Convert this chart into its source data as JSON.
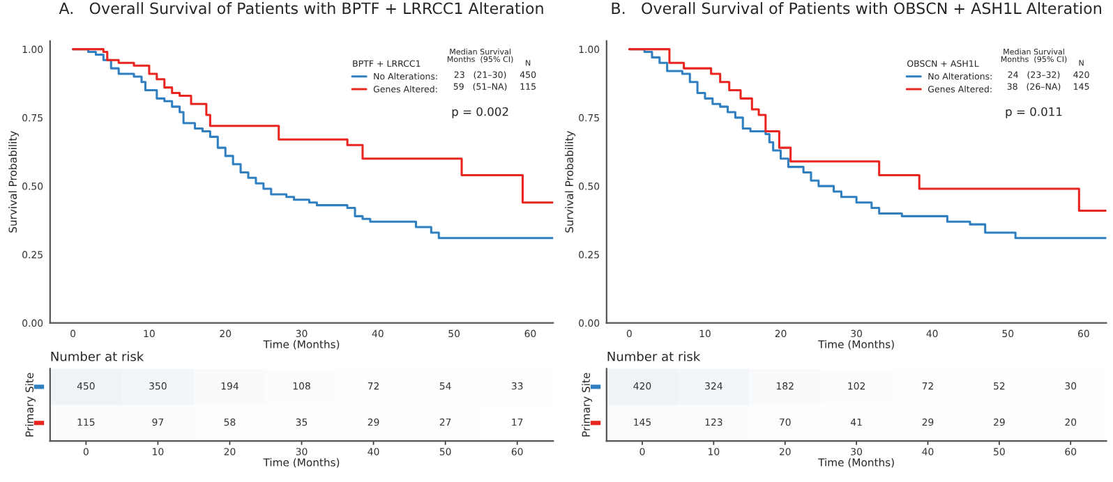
{
  "chart_data": [
    {
      "type": "step",
      "title": "A.   Overall Survival of Patients with BPTF + LRRCC1 Alteration",
      "xlabel": "Time (Months)",
      "ylabel": "Survival Probability",
      "legend_title": "BPTF + LRRCC1",
      "legend": "top right",
      "xlim": [
        -3,
        63
      ],
      "xticks": [
        0,
        10,
        20,
        30,
        40,
        50,
        60
      ],
      "ylim": [
        0,
        1.03
      ],
      "yticks": [
        {
          "value": 0,
          "label": "0.00"
        },
        {
          "value": 0.25,
          "label": "0.25"
        },
        {
          "value": 0.5,
          "label": "0.50"
        },
        {
          "value": 0.75,
          "label": "0.75"
        },
        {
          "value": 1,
          "label": "1.00"
        }
      ],
      "annotations": [
        "Median Survival\nMonths  (95% CI)",
        "N",
        "23   (21–30)",
        "450",
        "59   (51–NA)",
        "115",
        "p = 0.002"
      ],
      "series": [
        {
          "name": "No Alterations:",
          "color": "#2f7fc1",
          "x": [
            0,
            2,
            3,
            4,
            5,
            6,
            8,
            9,
            9.5,
            11,
            12,
            13,
            14,
            14.5,
            16,
            17,
            18,
            19,
            20,
            21,
            22,
            23,
            24,
            25,
            26,
            28,
            29,
            31,
            32,
            36,
            37,
            38,
            39,
            45,
            47,
            48,
            63
          ],
          "values": [
            1.0,
            0.99,
            0.98,
            0.96,
            0.93,
            0.91,
            0.9,
            0.88,
            0.85,
            0.82,
            0.81,
            0.79,
            0.77,
            0.73,
            0.71,
            0.7,
            0.68,
            0.64,
            0.61,
            0.58,
            0.55,
            0.53,
            0.51,
            0.49,
            0.47,
            0.46,
            0.45,
            0.44,
            0.43,
            0.42,
            0.39,
            0.38,
            0.37,
            0.35,
            0.33,
            0.31,
            0.31
          ]
        },
        {
          "name": "Genes Altered:",
          "color": "#e8251f",
          "x": [
            0,
            4,
            4.5,
            6,
            8,
            10,
            11,
            12,
            13,
            14,
            15.5,
            17.5,
            18,
            27,
            36,
            38,
            51,
            59,
            63
          ],
          "values": [
            1.0,
            0.99,
            0.96,
            0.95,
            0.94,
            0.91,
            0.89,
            0.86,
            0.84,
            0.83,
            0.8,
            0.76,
            0.72,
            0.67,
            0.65,
            0.6,
            0.54,
            0.44,
            0.44
          ]
        }
      ]
    },
    {
      "type": "heatmap",
      "title": "Number at risk",
      "xlabel": "Time (Months)",
      "ylabel": "Primary Site",
      "categories": [
        "0",
        "10",
        "20",
        "30",
        "40",
        "50",
        "60"
      ],
      "y_categories": [
        null,
        null
      ],
      "colors": [
        "#2f7fc1",
        "#e8251f"
      ],
      "cells": [
        [
          450,
          350,
          194,
          108,
          72,
          54,
          33
        ],
        [
          115,
          97,
          58,
          35,
          29,
          27,
          17
        ]
      ],
      "cell_labels": [
        [
          "450",
          "350",
          "194",
          "108",
          "72",
          "54",
          "33"
        ],
        [
          "115",
          "97",
          "58",
          "35",
          "29",
          "27",
          "17"
        ]
      ]
    },
    {
      "type": "step",
      "title": "B.   Overall Survival of Patients with OBSCN + ASH1L Alteration",
      "xlabel": "Time (Months)",
      "ylabel": "Survival Probability",
      "legend_title": "OBSCN + ASH1L",
      "legend": "top right",
      "xlim": [
        -3,
        63
      ],
      "xticks": [
        0,
        10,
        20,
        30,
        40,
        50,
        60
      ],
      "ylim": [
        0,
        1.03
      ],
      "yticks": [
        {
          "value": 0,
          "label": "0.00"
        },
        {
          "value": 0.25,
          "label": "0.25"
        },
        {
          "value": 0.5,
          "label": "0.50"
        },
        {
          "value": 0.75,
          "label": "0.75"
        },
        {
          "value": 1,
          "label": "1.00"
        }
      ],
      "annotations": [
        "Median Survival\nMonths  (95% CI)",
        "N",
        "24   (23–32)",
        "420",
        "38   (26–NA)",
        "145",
        "p = 0.011"
      ],
      "series": [
        {
          "name": "No Alterations:",
          "color": "#2f7fc1",
          "x": [
            0,
            2,
            3,
            4,
            5,
            7,
            8,
            9,
            10,
            11,
            12,
            13,
            14,
            15,
            16,
            18,
            18.5,
            19,
            20,
            21,
            23,
            24,
            25,
            27,
            28,
            30,
            32,
            33,
            36,
            42,
            45,
            47,
            51,
            63
          ],
          "values": [
            1.0,
            0.99,
            0.97,
            0.95,
            0.92,
            0.91,
            0.88,
            0.84,
            0.82,
            0.8,
            0.79,
            0.77,
            0.75,
            0.71,
            0.7,
            0.69,
            0.66,
            0.63,
            0.6,
            0.57,
            0.55,
            0.52,
            0.5,
            0.48,
            0.46,
            0.44,
            0.42,
            0.4,
            0.39,
            0.37,
            0.36,
            0.33,
            0.31,
            0.31
          ]
        },
        {
          "name": "Genes Altered:",
          "color": "#e8251f",
          "x": [
            0,
            5.3,
            7.2,
            10.8,
            12,
            13.2,
            14.7,
            16.2,
            17.1,
            18,
            19.8,
            21.3,
            33,
            38.3,
            59.4,
            63
          ],
          "values": [
            1.0,
            0.95,
            0.93,
            0.91,
            0.88,
            0.85,
            0.82,
            0.78,
            0.76,
            0.7,
            0.64,
            0.59,
            0.54,
            0.49,
            0.41,
            0.41
          ]
        }
      ]
    },
    {
      "type": "heatmap",
      "title": "Number at risk",
      "xlabel": "Time (Months)",
      "ylabel": "Primary Site",
      "categories": [
        "0",
        "10",
        "20",
        "30",
        "40",
        "50",
        "60"
      ],
      "y_categories": [
        null,
        null
      ],
      "colors": [
        "#2f7fc1",
        "#e8251f"
      ],
      "cells": [
        [
          420,
          324,
          182,
          102,
          72,
          52,
          30
        ],
        [
          145,
          123,
          70,
          41,
          29,
          29,
          20
        ]
      ],
      "cell_labels": [
        [
          "420",
          "324",
          "182",
          "102",
          "72",
          "52",
          "30"
        ],
        [
          "145",
          "123",
          "70",
          "41",
          "29",
          "29",
          "20"
        ]
      ]
    }
  ]
}
